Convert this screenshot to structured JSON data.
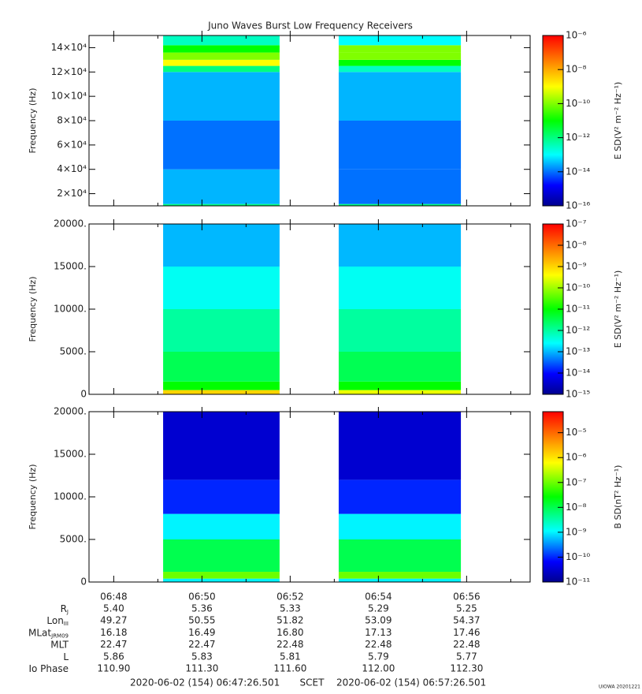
{
  "title": "Juno Waves Burst Low Frequency Receivers",
  "chart_data": [
    {
      "type": "spectrogram",
      "ylabel": "Frequency (Hz)",
      "clabel": "E SD(V² m⁻² Hz⁻¹)",
      "xlim": [
        47.44,
        57.44
      ],
      "xticks": [
        48,
        50,
        52,
        54,
        56
      ],
      "xminorticks": [
        49,
        51,
        53,
        55,
        57
      ],
      "ylim": [
        10000,
        150000
      ],
      "yticks": [
        {
          "value": 20000,
          "label": "2×10⁴"
        },
        {
          "value": 40000,
          "label": "4×10⁴"
        },
        {
          "value": 60000,
          "label": "6×10⁴"
        },
        {
          "value": 80000,
          "label": "8×10⁴"
        },
        {
          "value": 100000,
          "label": "10×10⁴"
        },
        {
          "value": 120000,
          "label": "12×10⁴"
        },
        {
          "value": 140000,
          "label": "14×10⁴"
        }
      ],
      "clim": [
        1e-16,
        1e-06
      ],
      "log_color": true,
      "cticks": [
        {
          "value": 1e-16,
          "label": "10⁻¹⁶"
        },
        {
          "value": 1e-14,
          "label": "10⁻¹⁴"
        },
        {
          "value": 1e-12,
          "label": "10⁻¹²"
        },
        {
          "value": 1e-10,
          "label": "10⁻¹⁰"
        },
        {
          "value": 1e-08,
          "label": "10⁻⁸"
        },
        {
          "value": 1e-06,
          "label": "10⁻⁶"
        }
      ],
      "freq_edges": [
        10000,
        11500,
        40000,
        80000,
        120000,
        125000,
        130000,
        136000,
        142000,
        150000
      ],
      "blocks": [
        {
          "x": [
            49.12,
            51.76
          ],
          "levels": [
            1e-12,
            3e-14,
            1e-14,
            3e-14,
            1e-12,
            1e-09,
            1e-10,
            1e-11,
            3e-13
          ]
        },
        {
          "x": [
            53.1,
            55.87
          ],
          "levels": [
            1e-12,
            1e-14,
            1e-14,
            3e-14,
            3e-13,
            1e-11,
            1e-10,
            1e-10,
            1e-13
          ]
        }
      ]
    },
    {
      "type": "spectrogram",
      "ylabel": "Frequency (Hz)",
      "clabel": "E SD(V² m⁻² Hz⁻¹)",
      "xlim": [
        47.44,
        57.44
      ],
      "xticks": [
        48,
        50,
        52,
        54,
        56
      ],
      "xminorticks": [
        49,
        51,
        53,
        55,
        57
      ],
      "ylim": [
        0,
        20000
      ],
      "yticks": [
        0,
        {
          "value": 5000,
          "label": "5000."
        },
        {
          "value": 10000,
          "label": "10000."
        },
        {
          "value": 15000,
          "label": "15000."
        },
        {
          "value": 20000,
          "label": "20000."
        }
      ],
      "clim": [
        1e-15,
        1e-07
      ],
      "log_color": true,
      "cticks": [
        {
          "value": 1e-15,
          "label": "10⁻¹⁵"
        },
        {
          "value": 1e-14,
          "label": "10⁻¹⁴"
        },
        {
          "value": 1e-13,
          "label": "10⁻¹³"
        },
        {
          "value": 1e-12,
          "label": "10⁻¹²"
        },
        {
          "value": 1e-11,
          "label": "10⁻¹¹"
        },
        {
          "value": 1e-10,
          "label": "10⁻¹⁰"
        },
        {
          "value": 1e-09,
          "label": "10⁻⁹"
        },
        {
          "value": 1e-08,
          "label": "10⁻⁸"
        },
        {
          "value": 1e-07,
          "label": "10⁻⁷"
        }
      ],
      "freq_edges": [
        0,
        500,
        1500,
        5000,
        10000,
        15000,
        20000
      ],
      "blocks": [
        {
          "x": [
            49.12,
            51.76
          ],
          "levels": [
            1e-09,
            1e-11,
            3e-12,
            1e-12,
            3e-13,
            1e-13
          ]
        },
        {
          "x": [
            53.1,
            55.87
          ],
          "levels": [
            3e-10,
            1e-11,
            3e-12,
            1e-12,
            3e-13,
            1e-13
          ]
        }
      ]
    },
    {
      "type": "spectrogram",
      "ylabel": "Frequency (Hz)",
      "clabel": "B SD(nT² Hz⁻¹)",
      "xlim": [
        47.44,
        57.44
      ],
      "xticks": [
        {
          "value": 48,
          "label": "06:48"
        },
        {
          "value": 50,
          "label": "06:50"
        },
        {
          "value": 52,
          "label": "06:52"
        },
        {
          "value": 54,
          "label": "06:54"
        },
        {
          "value": 56,
          "label": "06:56"
        }
      ],
      "xminorticks": [
        49,
        51,
        53,
        55,
        57
      ],
      "ylim": [
        0,
        20000
      ],
      "yticks": [
        0,
        {
          "value": 5000,
          "label": "5000."
        },
        {
          "value": 10000,
          "label": "10000."
        },
        {
          "value": 15000,
          "label": "15000."
        },
        {
          "value": 20000,
          "label": "20000."
        }
      ],
      "clim": [
        1e-11,
        7e-05
      ],
      "log_color": true,
      "cticks": [
        {
          "value": 1e-11,
          "label": "10⁻¹¹"
        },
        {
          "value": 1e-10,
          "label": "10⁻¹⁰"
        },
        {
          "value": 1e-09,
          "label": "10⁻⁹"
        },
        {
          "value": 1e-08,
          "label": "10⁻⁸"
        },
        {
          "value": 1e-07,
          "label": "10⁻⁷"
        },
        {
          "value": 1e-06,
          "label": "10⁻⁶"
        },
        {
          "value": 1e-05,
          "label": "10⁻⁵"
        }
      ],
      "freq_edges": [
        0,
        400,
        1200,
        5000,
        8000,
        12000,
        20000
      ],
      "blocks": [
        {
          "x": [
            49.12,
            51.76
          ],
          "levels": [
            1e-09,
            1e-07,
            1e-08,
            1e-09,
            1e-10,
            3e-11
          ]
        },
        {
          "x": [
            53.1,
            55.87
          ],
          "levels": [
            1e-09,
            1e-07,
            1e-08,
            1e-09,
            1e-10,
            3e-11
          ]
        }
      ]
    }
  ],
  "ephemeris": [
    {
      "label": "R",
      "sub": "J",
      "values": [
        "5.40",
        "5.36",
        "5.33",
        "5.29",
        "5.25"
      ]
    },
    {
      "label": "Lon",
      "sub": "III",
      "values": [
        "49.27",
        "50.55",
        "51.82",
        "53.09",
        "54.37"
      ]
    },
    {
      "label": "MLat",
      "sub": "JRM09",
      "values": [
        "16.18",
        "16.49",
        "16.80",
        "17.13",
        "17.46"
      ]
    },
    {
      "label": "MLT",
      "values": [
        "22.47",
        "22.47",
        "22.48",
        "22.48",
        "22.48"
      ]
    },
    {
      "label": "L",
      "values": [
        "5.86",
        "5.83",
        "5.81",
        "5.79",
        "5.77"
      ]
    },
    {
      "label": "Io Phase",
      "values": [
        "110.90",
        "111.30",
        "111.60",
        "112.00",
        "112.30"
      ]
    }
  ],
  "footer": {
    "start": "2020-06-02 (154) 06:47:26.501",
    "center": "SCET",
    "end": "2020-06-02 (154) 06:57:26.501",
    "credit": "UIOWA 20201221"
  }
}
